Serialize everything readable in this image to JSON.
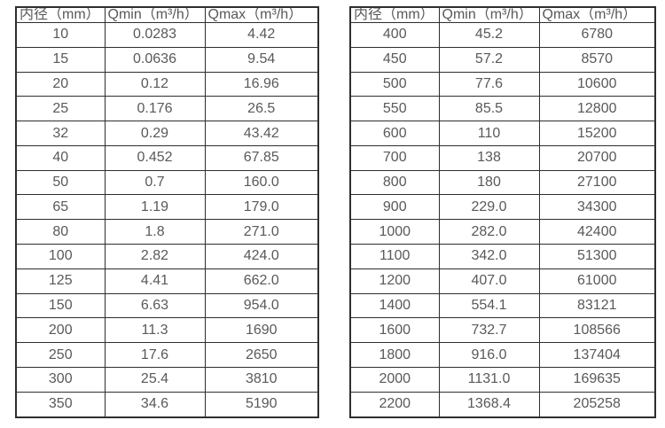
{
  "colors": {
    "background": "#ffffff",
    "border": "#2e2e2e",
    "text": "#595959"
  },
  "tables": [
    {
      "name": "flow-table-small-diameters",
      "headers": [
        "内径（mm）",
        "Qmin（m³/h）",
        "Qmax（m³/h）"
      ],
      "rows": [
        [
          "10",
          "0.0283",
          "4.42"
        ],
        [
          "15",
          "0.0636",
          "9.54"
        ],
        [
          "20",
          "0.12",
          "16.96"
        ],
        [
          "25",
          "0.176",
          "26.5"
        ],
        [
          "32",
          "0.29",
          "43.42"
        ],
        [
          "40",
          "0.452",
          "67.85"
        ],
        [
          "50",
          "0.7",
          "160.0"
        ],
        [
          "65",
          "1.19",
          "179.0"
        ],
        [
          "80",
          "1.8",
          "271.0"
        ],
        [
          "100",
          "2.82",
          "424.0"
        ],
        [
          "125",
          "4.41",
          "662.0"
        ],
        [
          "150",
          "6.63",
          "954.0"
        ],
        [
          "200",
          "11.3",
          "1690"
        ],
        [
          "250",
          "17.6",
          "2650"
        ],
        [
          "300",
          "25.4",
          "3810"
        ],
        [
          "350",
          "34.6",
          "5190"
        ]
      ]
    },
    {
      "name": "flow-table-large-diameters",
      "headers": [
        "内径（mm）",
        "Qmin（m³/h）",
        "Qmax（m³/h）"
      ],
      "rows": [
        [
          "400",
          "45.2",
          "6780"
        ],
        [
          "450",
          "57.2",
          "8570"
        ],
        [
          "500",
          "77.6",
          "10600"
        ],
        [
          "550",
          "85.5",
          "12800"
        ],
        [
          "600",
          "110",
          "15200"
        ],
        [
          "700",
          "138",
          "20700"
        ],
        [
          "800",
          "180",
          "27100"
        ],
        [
          "900",
          "229.0",
          "34300"
        ],
        [
          "1000",
          "282.0",
          "42400"
        ],
        [
          "1100",
          "342.0",
          "51300"
        ],
        [
          "1200",
          "407.0",
          "61000"
        ],
        [
          "1400",
          "554.1",
          "83121"
        ],
        [
          "1600",
          "732.7",
          "108566"
        ],
        [
          "1800",
          "916.0",
          "137404"
        ],
        [
          "2000",
          "1131.0",
          "169635"
        ],
        [
          "2200",
          "1368.4",
          "205258"
        ]
      ]
    }
  ]
}
